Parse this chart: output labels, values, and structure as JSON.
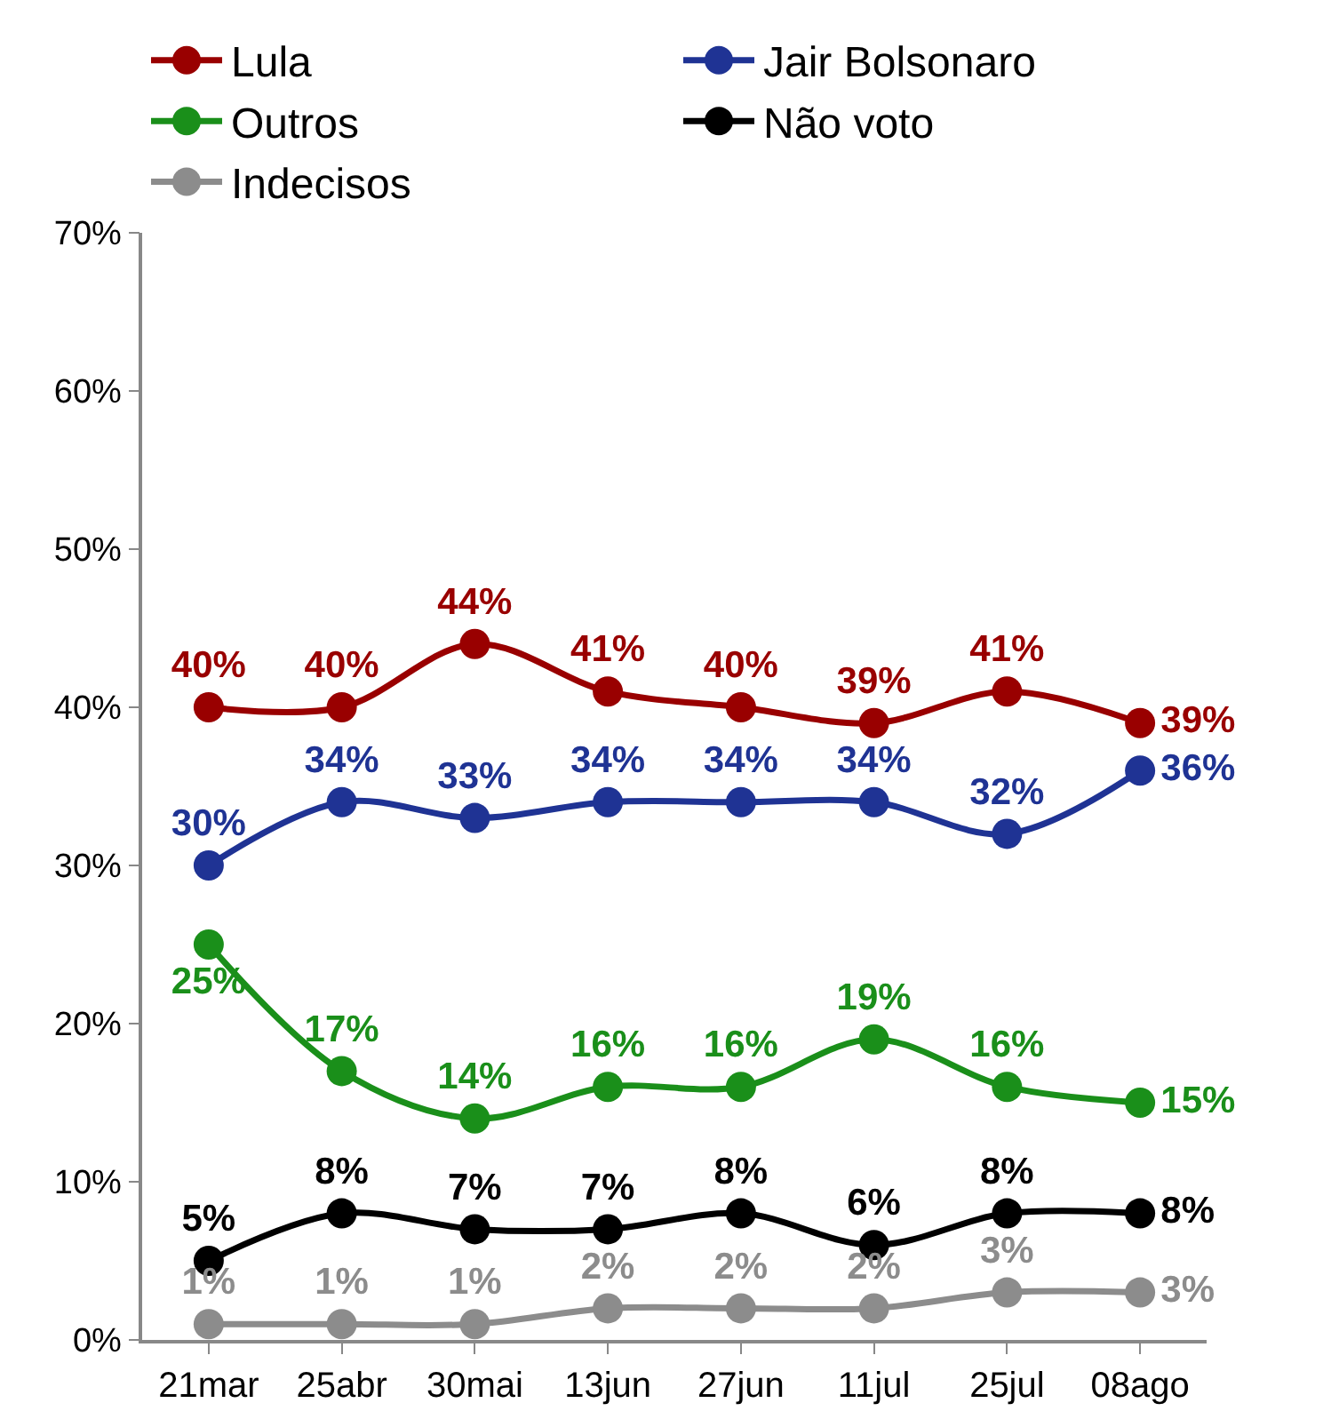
{
  "chart_data": {
    "type": "line",
    "categories": [
      "21mar",
      "25abr",
      "30mai",
      "13jun",
      "27jun",
      "11jul",
      "25jul",
      "08ago"
    ],
    "series": [
      {
        "name": "Lula",
        "color": "#990000",
        "values": [
          40,
          40,
          44,
          41,
          40,
          39,
          41,
          39
        ],
        "value_labels": [
          "40%",
          "40%",
          "44%",
          "41%",
          "40%",
          "39%",
          "41%",
          "39%"
        ]
      },
      {
        "name": "Jair Bolsonaro",
        "color": "#1f3394",
        "values": [
          30,
          34,
          33,
          34,
          34,
          34,
          32,
          36
        ],
        "value_labels": [
          "30%",
          "34%",
          "33%",
          "34%",
          "34%",
          "34%",
          "32%",
          "36%"
        ]
      },
      {
        "name": "Outros",
        "color": "#1a8f1a",
        "values": [
          25,
          17,
          14,
          16,
          16,
          19,
          16,
          15
        ],
        "value_labels": [
          "25%",
          "17%",
          "14%",
          "16%",
          "16%",
          "19%",
          "16%",
          "15%"
        ]
      },
      {
        "name": "Não voto",
        "color": "#000000",
        "values": [
          5,
          8,
          7,
          7,
          8,
          6,
          8,
          8
        ],
        "value_labels": [
          "5%",
          "8%",
          "7%",
          "7%",
          "8%",
          "6%",
          "8%",
          "8%"
        ]
      },
      {
        "name": "Indecisos",
        "color": "#8c8c8c",
        "values": [
          1,
          1,
          1,
          2,
          2,
          2,
          3,
          3
        ],
        "value_labels": [
          "1%",
          "1%",
          "1%",
          "2%",
          "2%",
          "2%",
          "3%",
          "3%"
        ]
      }
    ],
    "ylim": [
      0,
      70
    ],
    "yticks": [
      {
        "value": 0,
        "label": "0%"
      },
      {
        "value": 10,
        "label": "10%"
      },
      {
        "value": 20,
        "label": "20%"
      },
      {
        "value": 30,
        "label": "30%"
      },
      {
        "value": 40,
        "label": "40%"
      },
      {
        "value": 50,
        "label": "50%"
      },
      {
        "value": 60,
        "label": "60%"
      },
      {
        "value": 70,
        "label": "70%"
      }
    ],
    "legend": "top",
    "marker": "circle",
    "line_style": "solid"
  }
}
